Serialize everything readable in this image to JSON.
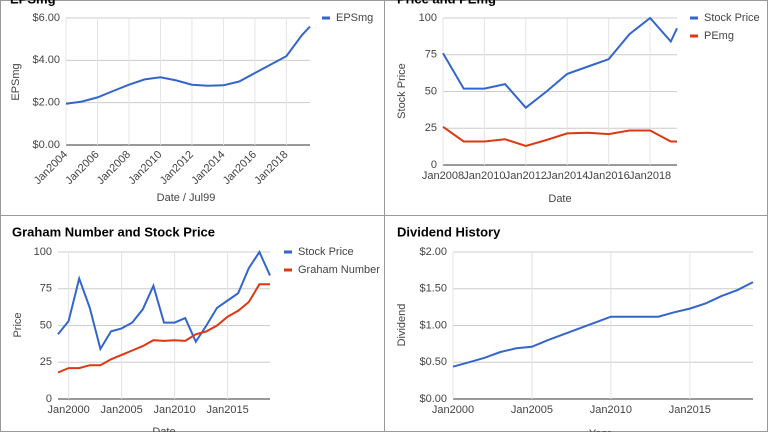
{
  "chart_data": [
    {
      "type": "line",
      "title": "EPSmg",
      "x_label": "Date / Jul99",
      "y_label": "EPSmg",
      "grid": true,
      "legend": "right",
      "x": [
        2004,
        2005,
        2006,
        2007,
        2008,
        2009,
        2010,
        2011,
        2012,
        2013,
        2014,
        2015,
        2016,
        2017,
        2018,
        2019,
        2019.5
      ],
      "xlim": [
        2004,
        2019.5
      ],
      "xticks": [
        {
          "value": 2004,
          "label": "Jan2004"
        },
        {
          "value": 2006,
          "label": "Jan2006"
        },
        {
          "value": 2008,
          "label": "Jan2008"
        },
        {
          "value": 2010,
          "label": "Jan2010"
        },
        {
          "value": 2012,
          "label": "Jan2012"
        },
        {
          "value": 2014,
          "label": "Jan2014"
        },
        {
          "value": 2016,
          "label": "Jan2016"
        },
        {
          "value": 2018,
          "label": "Jan2018"
        }
      ],
      "ylim": [
        0,
        6
      ],
      "yticks": [
        {
          "value": 0,
          "label": "$0.00"
        },
        {
          "value": 2,
          "label": "$2.00"
        },
        {
          "value": 4,
          "label": "$4.00"
        },
        {
          "value": 6,
          "label": "$6.00"
        }
      ],
      "series": [
        {
          "name": "EPSmg",
          "color": "#3366cc",
          "values": [
            1.95,
            2.05,
            2.25,
            2.55,
            2.85,
            3.1,
            3.2,
            3.05,
            2.85,
            2.8,
            2.82,
            3.0,
            3.4,
            3.8,
            4.2,
            5.2,
            5.6
          ]
        }
      ]
    },
    {
      "type": "line",
      "title": "Price and PEmg",
      "x_label": "Date",
      "y_label": "Stock Price",
      "grid": true,
      "legend": "right",
      "x": [
        2008,
        2009,
        2010,
        2011,
        2012,
        2013,
        2014,
        2015,
        2016,
        2017,
        2018,
        2019,
        2019.3
      ],
      "xlim": [
        2008,
        2019.3
      ],
      "xticks": [
        {
          "value": 2008,
          "label": "Jan2008"
        },
        {
          "value": 2010,
          "label": "Jan2010"
        },
        {
          "value": 2012,
          "label": "Jan2012"
        },
        {
          "value": 2014,
          "label": "Jan2014"
        },
        {
          "value": 2016,
          "label": "Jan2016"
        },
        {
          "value": 2018,
          "label": "Jan2018"
        }
      ],
      "ylim": [
        0,
        100
      ],
      "yticks": [
        0,
        25,
        50,
        75,
        100
      ],
      "series": [
        {
          "name": "Stock Price",
          "color": "#3366cc",
          "values": [
            76,
            52,
            52,
            55,
            39,
            50,
            62,
            67,
            72,
            89,
            100,
            84,
            93
          ]
        },
        {
          "name": "PEmg",
          "color": "#dc3912",
          "values": [
            26,
            16,
            16,
            17.5,
            13,
            17,
            21.5,
            22,
            21,
            23.5,
            23.5,
            16,
            16
          ]
        }
      ]
    },
    {
      "type": "line",
      "title": "Graham Number and Stock Price",
      "x_label": "Date",
      "y_label": "Price",
      "grid": true,
      "legend": "right",
      "x": [
        1999,
        2000,
        2001,
        2002,
        2003,
        2004,
        2005,
        2006,
        2007,
        2008,
        2009,
        2010,
        2011,
        2012,
        2013,
        2014,
        2015,
        2016,
        2017,
        2018,
        2019
      ],
      "xlim": [
        1999,
        2019
      ],
      "xticks": [
        {
          "value": 2000,
          "label": "Jan2000"
        },
        {
          "value": 2005,
          "label": "Jan2005"
        },
        {
          "value": 2010,
          "label": "Jan2010"
        },
        {
          "value": 2015,
          "label": "Jan2015"
        }
      ],
      "ylim": [
        0,
        100
      ],
      "yticks": [
        0,
        25,
        50,
        75,
        100
      ],
      "series": [
        {
          "name": "Stock Price",
          "color": "#3366cc",
          "values": [
            44,
            53,
            82,
            62,
            34,
            46,
            48,
            52,
            61,
            77,
            52,
            52,
            55,
            39,
            50,
            62,
            67,
            72,
            89,
            100,
            84
          ]
        },
        {
          "name": "Graham Number",
          "color": "#dc3912",
          "values": [
            18,
            21,
            21,
            23,
            23,
            27,
            30,
            33,
            36,
            40,
            39.5,
            40,
            39.5,
            44,
            46,
            50,
            56,
            60,
            66,
            78,
            78
          ]
        }
      ]
    },
    {
      "type": "line",
      "title": "Dividend History",
      "x_label": "Year",
      "y_label": "Dividend",
      "grid": true,
      "x": [
        2000,
        2001,
        2002,
        2003,
        2004,
        2005,
        2006,
        2007,
        2008,
        2009,
        2010,
        2011,
        2012,
        2013,
        2014,
        2015,
        2016,
        2017,
        2018,
        2019
      ],
      "xlim": [
        2000,
        2019
      ],
      "xticks": [
        {
          "value": 2000,
          "label": "Jan2000"
        },
        {
          "value": 2005,
          "label": "Jan2005"
        },
        {
          "value": 2010,
          "label": "Jan2010"
        },
        {
          "value": 2015,
          "label": "Jan2015"
        }
      ],
      "ylim": [
        0,
        2
      ],
      "yticks": [
        {
          "value": 0,
          "label": "$0.00"
        },
        {
          "value": 0.5,
          "label": "$0.50"
        },
        {
          "value": 1,
          "label": "$1.00"
        },
        {
          "value": 1.5,
          "label": "$1.50"
        },
        {
          "value": 2,
          "label": "$2.00"
        }
      ],
      "series": [
        {
          "name": "Dividend",
          "color": "#3366cc",
          "values": [
            0.44,
            0.5,
            0.56,
            0.64,
            0.69,
            0.71,
            0.8,
            0.88,
            0.96,
            1.04,
            1.12,
            1.12,
            1.12,
            1.12,
            1.18,
            1.23,
            1.3,
            1.4,
            1.48,
            1.59
          ]
        }
      ]
    }
  ]
}
